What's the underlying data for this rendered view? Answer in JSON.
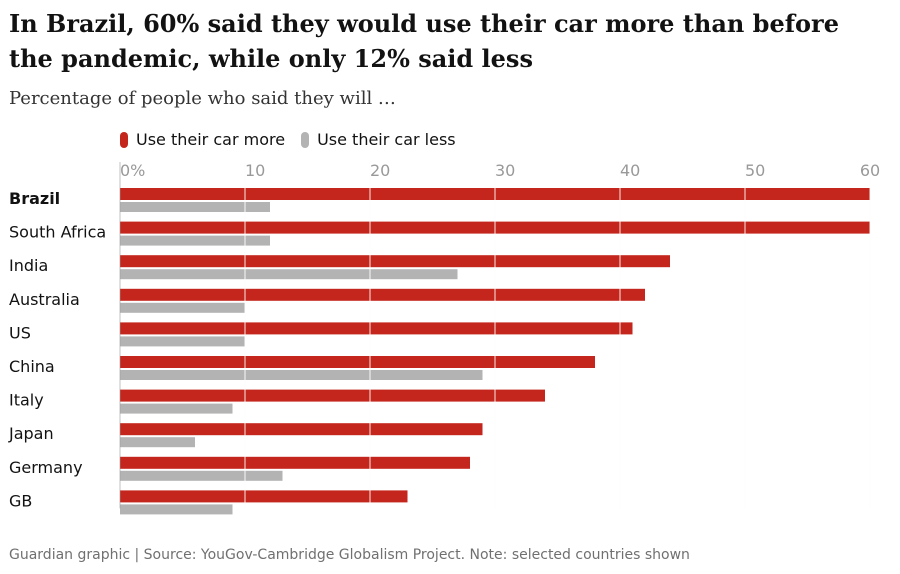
{
  "header": {
    "title": "In Brazil, 60% said they would use their car more than before the pandemic, while only 12% said less",
    "subtitle": "Percentage of people who said they will …"
  },
  "legend": {
    "more": "Use their car more",
    "less": "Use their car less"
  },
  "footer": {
    "source": "Guardian graphic | Source: YouGov-Cambridge Globalism Project. Note: selected countries shown"
  },
  "colors": {
    "more": "#c4261d",
    "less": "#b3b3b3",
    "tick_text": "#999999",
    "text": "#121212"
  },
  "chart_data": {
    "type": "bar",
    "orientation": "horizontal",
    "categories": [
      "Brazil",
      "South Africa",
      "India",
      "Australia",
      "US",
      "China",
      "Italy",
      "Japan",
      "Germany",
      "GB"
    ],
    "highlighted_category": "Brazil",
    "series": [
      {
        "name": "Use their car more",
        "values": [
          60,
          60,
          44,
          42,
          41,
          38,
          34,
          29,
          28,
          23
        ]
      },
      {
        "name": "Use their car less",
        "values": [
          12,
          12,
          27,
          10,
          10,
          29,
          9,
          6,
          13,
          9
        ]
      }
    ],
    "xticks": [
      "0%",
      "10",
      "20",
      "30",
      "40",
      "50",
      "60"
    ],
    "xtick_values": [
      0,
      10,
      20,
      30,
      40,
      50,
      60
    ],
    "xlim": [
      0,
      60
    ],
    "grid": true,
    "legend_position": "top-left"
  }
}
